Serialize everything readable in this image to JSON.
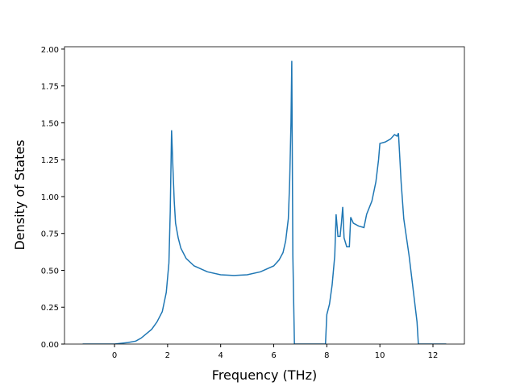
{
  "chart_data": {
    "type": "line",
    "xlabel": "Frequency (THz)",
    "ylabel": "Density of States",
    "series": [
      {
        "color": "#1f77b4",
        "x": [
          -1.2,
          0,
          0.5,
          0.8,
          1.0,
          1.2,
          1.4,
          1.6,
          1.8,
          1.95,
          2.05,
          2.1,
          2.15,
          2.2,
          2.25,
          2.3,
          2.4,
          2.5,
          2.7,
          3.0,
          3.5,
          4.0,
          4.5,
          5.0,
          5.5,
          6.0,
          6.2,
          6.35,
          6.45,
          6.55,
          6.6,
          6.65,
          6.68,
          6.72,
          6.78,
          7.95,
          8.0,
          8.1,
          8.2,
          8.3,
          8.35,
          8.42,
          8.5,
          8.55,
          8.6,
          8.65,
          8.75,
          8.85,
          8.9,
          9.0,
          9.2,
          9.4,
          9.5,
          9.7,
          9.85,
          9.95,
          10.0,
          10.2,
          10.4,
          10.55,
          10.65,
          10.7,
          10.8,
          10.9,
          11.1,
          11.3,
          11.4,
          11.45,
          12.5
        ],
        "values": [
          0,
          0,
          0.01,
          0.02,
          0.04,
          0.07,
          0.1,
          0.15,
          0.22,
          0.35,
          0.55,
          0.9,
          1.45,
          1.2,
          0.97,
          0.82,
          0.72,
          0.65,
          0.58,
          0.53,
          0.49,
          0.47,
          0.465,
          0.47,
          0.49,
          0.53,
          0.57,
          0.62,
          0.7,
          0.85,
          1.1,
          1.5,
          1.92,
          0.6,
          0,
          0,
          0.2,
          0.27,
          0.4,
          0.6,
          0.88,
          0.73,
          0.73,
          0.82,
          0.93,
          0.72,
          0.66,
          0.66,
          0.86,
          0.82,
          0.8,
          0.79,
          0.88,
          0.97,
          1.1,
          1.25,
          1.36,
          1.37,
          1.39,
          1.42,
          1.41,
          1.43,
          1.1,
          0.85,
          0.6,
          0.3,
          0.15,
          0,
          0
        ]
      }
    ],
    "xlim": [
      -1.885,
      13.185
    ],
    "ylim": [
      0,
      2.016
    ],
    "xticks": [
      0,
      2,
      4,
      6,
      8,
      10,
      12
    ],
    "yticks": [
      {
        "value": 0,
        "label": "0.00"
      },
      {
        "value": 0.25,
        "label": "0.25"
      },
      {
        "value": 0.5,
        "label": "0.50"
      },
      {
        "value": 0.75,
        "label": "0.75"
      },
      {
        "value": 1,
        "label": "1.00"
      },
      {
        "value": 1.25,
        "label": "1.25"
      },
      {
        "value": 1.5,
        "label": "1.50"
      },
      {
        "value": 1.75,
        "label": "1.75"
      },
      {
        "value": 2,
        "label": "2.00"
      }
    ]
  }
}
